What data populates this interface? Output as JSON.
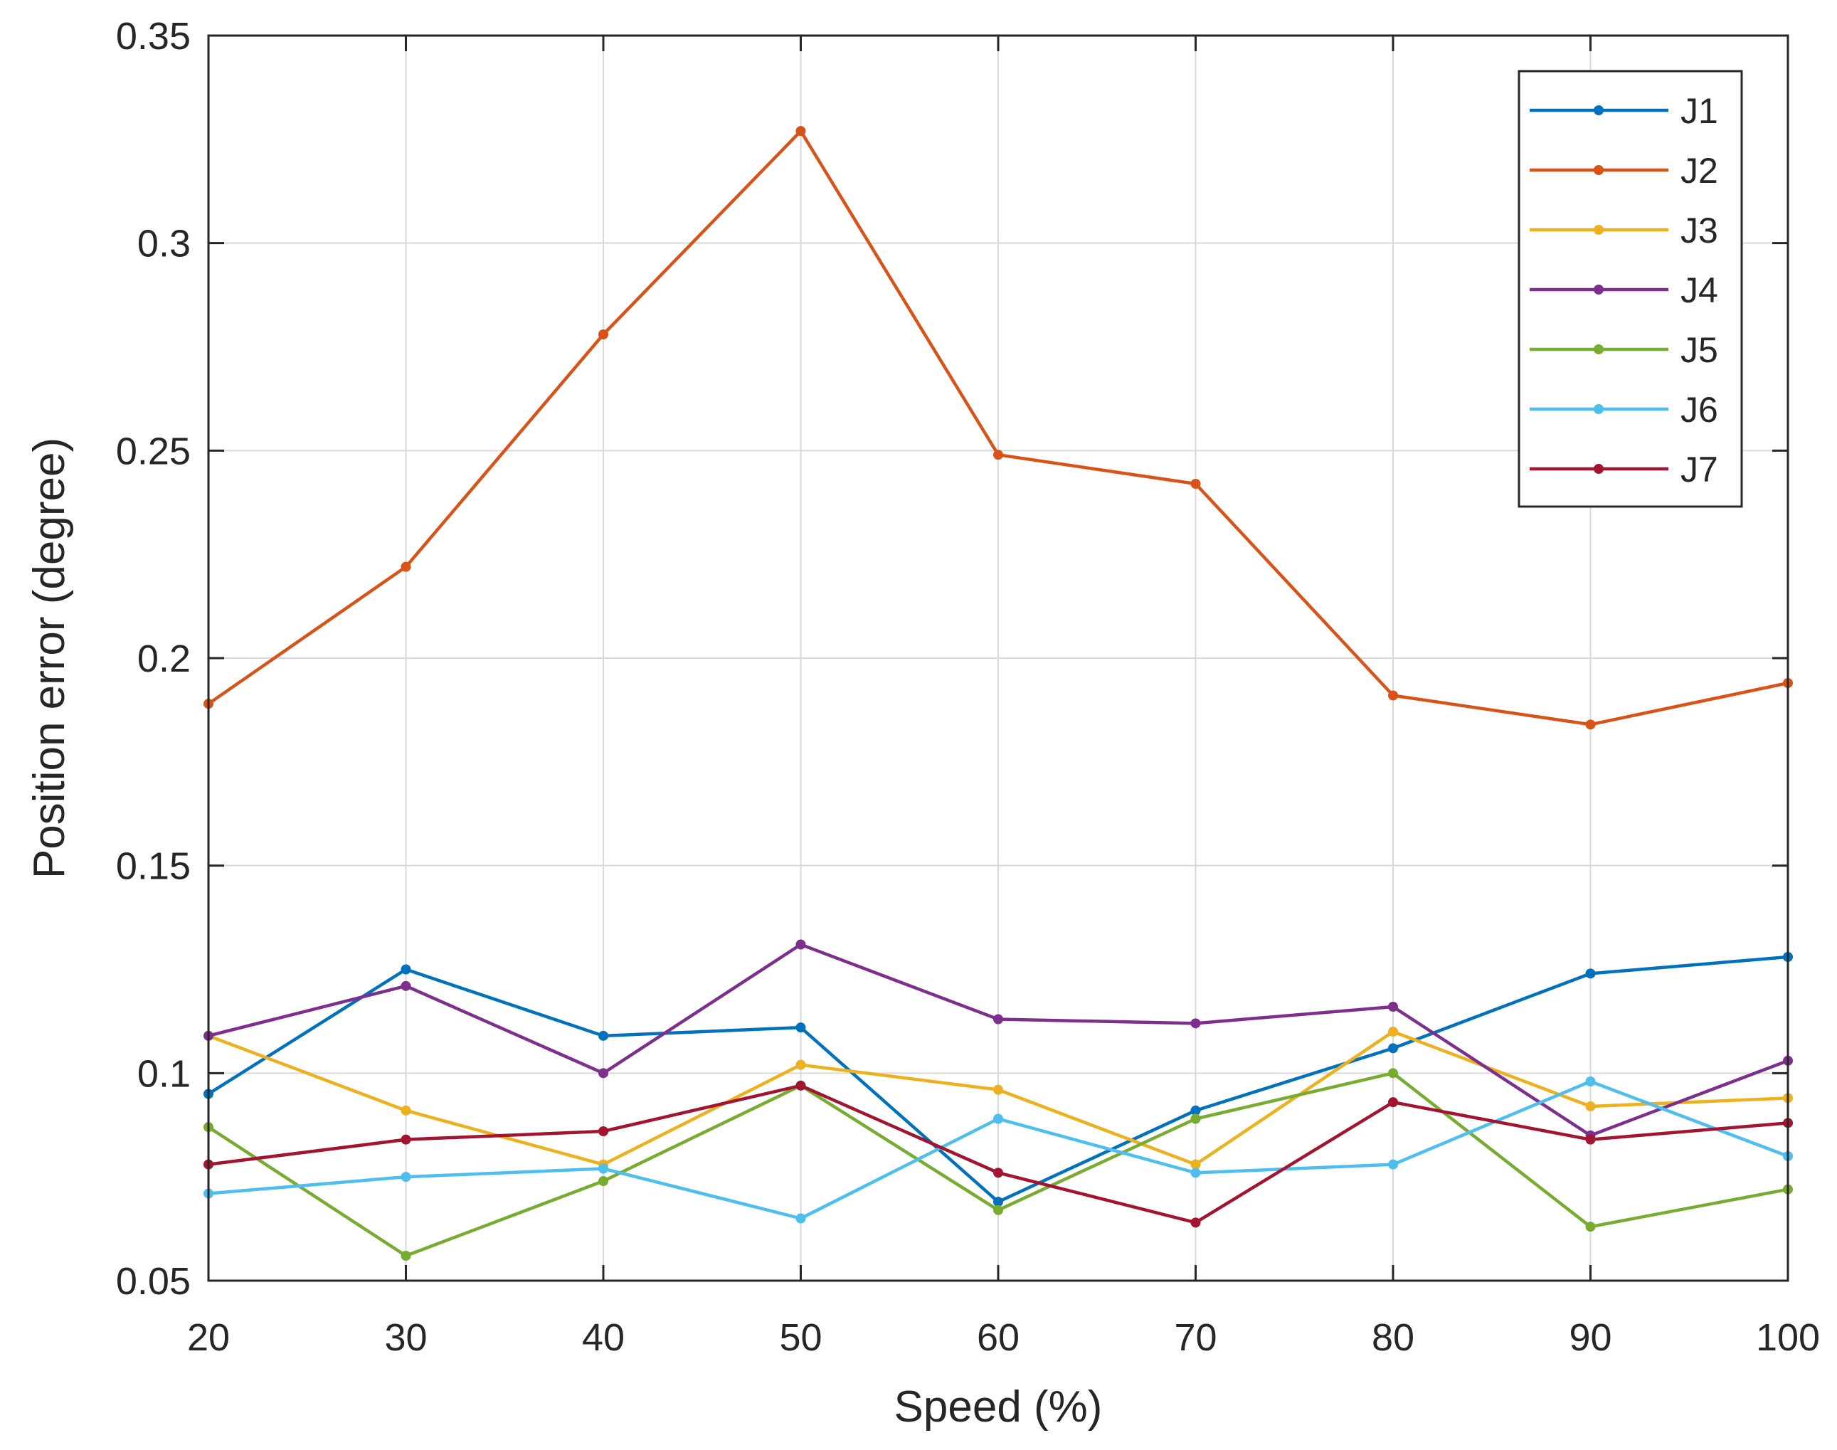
{
  "chart_data": {
    "type": "line",
    "title": "",
    "xlabel": "Speed (%)",
    "ylabel": "Position error (degree)",
    "xlim": [
      20,
      100
    ],
    "ylim": [
      0.05,
      0.35
    ],
    "grid": true,
    "legend_position": "top-right",
    "x": [
      20,
      30,
      40,
      50,
      60,
      70,
      80,
      90,
      100
    ],
    "x_ticks": [
      "20",
      "30",
      "40",
      "50",
      "60",
      "70",
      "80",
      "90",
      "100"
    ],
    "y_ticks": [
      "0.05",
      "0.1",
      "0.15",
      "0.2",
      "0.25",
      "0.3",
      "0.35"
    ],
    "series": [
      {
        "name": "J1",
        "color": "#0072BD",
        "values": [
          0.095,
          0.125,
          0.109,
          0.111,
          0.069,
          0.091,
          0.106,
          0.124,
          0.128
        ]
      },
      {
        "name": "J2",
        "color": "#D95319",
        "values": [
          0.189,
          0.222,
          0.278,
          0.327,
          0.249,
          0.242,
          0.191,
          0.184,
          0.194
        ]
      },
      {
        "name": "J3",
        "color": "#EDB120",
        "values": [
          0.109,
          0.091,
          0.078,
          0.102,
          0.096,
          0.078,
          0.11,
          0.092,
          0.094
        ]
      },
      {
        "name": "J4",
        "color": "#7E2F8E",
        "values": [
          0.109,
          0.121,
          0.1,
          0.131,
          0.113,
          0.112,
          0.116,
          0.085,
          0.103
        ]
      },
      {
        "name": "J5",
        "color": "#77AC30",
        "values": [
          0.087,
          0.056,
          0.074,
          0.097,
          0.067,
          0.089,
          0.1,
          0.063,
          0.072
        ]
      },
      {
        "name": "J6",
        "color": "#4DBEEE",
        "values": [
          0.071,
          0.075,
          0.077,
          0.065,
          0.089,
          0.076,
          0.078,
          0.098,
          0.08
        ]
      },
      {
        "name": "J7",
        "color": "#A2142F",
        "values": [
          0.078,
          0.084,
          0.086,
          0.097,
          0.076,
          0.064,
          0.093,
          0.084,
          0.088
        ]
      }
    ]
  }
}
